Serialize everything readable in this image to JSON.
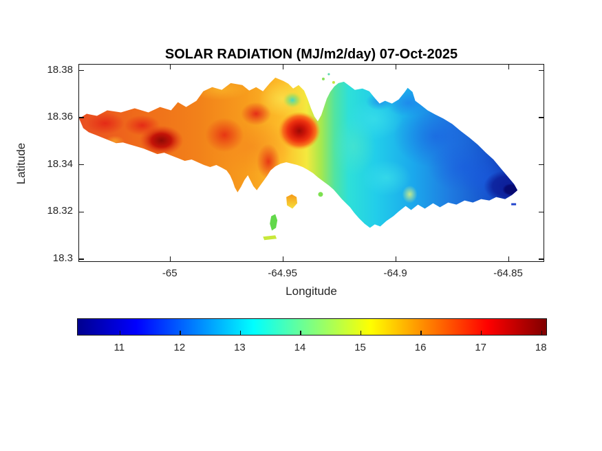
{
  "figure": {
    "background": "#ffffff",
    "text_color": "#262626"
  },
  "chart_data": {
    "type": "heatmap",
    "subtype": "filled-contour-geographic-map",
    "title": "SOLAR RADIATION (MJ/m2/day) 07-Oct-2025",
    "units": "MJ/m2/day",
    "date": "07-Oct-2025",
    "xlabel": "Longitude",
    "ylabel": "Latitude",
    "xlim": [
      -65.0405,
      -64.834
    ],
    "ylim": [
      18.2985,
      18.3825
    ],
    "x_ticks": {
      "values": [
        -65,
        -64.95,
        -64.9,
        -64.85
      ],
      "labels": [
        "-65",
        "-64.95",
        "-64.9",
        "-64.85"
      ]
    },
    "y_ticks": {
      "values": [
        18.3,
        18.32,
        18.34,
        18.36,
        18.38
      ],
      "labels": [
        "18.3",
        "18.32",
        "18.34",
        "18.36",
        "18.38"
      ]
    },
    "grid": false,
    "legend": "none",
    "colorbar": {
      "orientation": "horizontal",
      "position": "below plot",
      "limits": [
        10.3,
        18.1
      ],
      "tick_values": [
        11,
        12,
        13,
        14,
        15,
        16,
        17,
        18
      ],
      "tick_labels": [
        "11",
        "12",
        "13",
        "14",
        "15",
        "16",
        "17",
        "18"
      ],
      "colormap": "jet",
      "gradient_stops": [
        {
          "pos": 0,
          "color": "#00008f"
        },
        {
          "pos": 12.5,
          "color": "#0000ff"
        },
        {
          "pos": 37.5,
          "color": "#00ffff"
        },
        {
          "pos": 50,
          "color": "#80ff80"
        },
        {
          "pos": 62.5,
          "color": "#ffff00"
        },
        {
          "pos": 87.5,
          "color": "#ff0000"
        },
        {
          "pos": 100,
          "color": "#800000"
        }
      ]
    },
    "spatial_pattern": {
      "west_island": "high radiation 16-18 MJ/m2/day (orange-red), dark-red maximum ~18 near lon -65.004, lat 18.350",
      "central_island": "15-17 MJ/m2/day with isolated red bullseye maximum ~18 near lon -64.943, lat 18.354 and a small cyan low ~13 just northwest of it",
      "east_island": "low radiation 11-13 MJ/m2/day (cyan-blue), dark navy minimum ~10.5 near lon -64.851, lat 18.328",
      "bay_notch": "white unmapped inlet on the north coast near lon -64.95",
      "offshore_islets_south": "small islets south of center at 13-16 MJ/m2/day (green/yellow/orange)"
    }
  }
}
